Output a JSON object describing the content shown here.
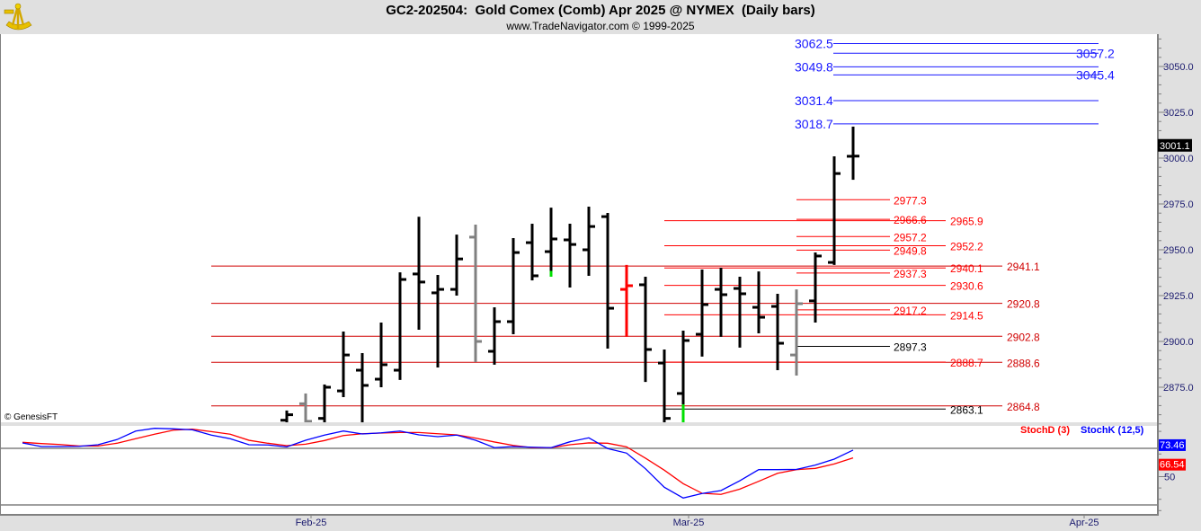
{
  "header": {
    "title": "GC2-202504:  Gold Comex (Comb) Apr 2025 @ NYMEX  (Daily bars)",
    "subtitle": "www.TradeNavigator.com © 1999-2025",
    "logo": "sextant-logo"
  },
  "copyright": "© GenesisFT",
  "colors": {
    "up_bar": "#000000",
    "gray_bar": "#808080",
    "red_bar": "#ff0000",
    "marker": "#00e000",
    "level_red": "#ff0000",
    "level_dark_red": "#d00000",
    "level_blue": "#1a1aff",
    "level_black": "#000000",
    "stoch_k": "#0000ff",
    "stoch_d": "#ff0000"
  },
  "chart_data": [
    {
      "type": "ohlc",
      "title": "GC2-202504:  Gold Comex (Comb) Apr 2025 @ NYMEX  (Daily bars)",
      "ylim": [
        2855,
        3070
      ],
      "y_ticks": [
        "3050.0",
        "3025.0",
        "3000.0",
        "2975.0",
        "2950.0",
        "2925.0",
        "2900.0",
        "2875.0"
      ],
      "x_tick_labels": [
        "Feb-25",
        "Mar-25",
        "Apr-25"
      ],
      "last_price": "3001.1",
      "bars": [
        {
          "o": 2857,
          "h": 2862.3,
          "l": 2850,
          "c": 2860,
          "color": "black"
        },
        {
          "o": 2866,
          "h": 2871.6,
          "l": 2850,
          "c": 2856.4,
          "color": "gray"
        },
        {
          "o": 2858,
          "h": 2876.5,
          "l": 2850,
          "c": 2875,
          "color": "black"
        },
        {
          "o": 2873,
          "h": 2905.4,
          "l": 2869.6,
          "c": 2892.6,
          "color": "black"
        },
        {
          "o": 2884.3,
          "h": 2893.6,
          "l": 2852,
          "c": 2876,
          "color": "black"
        },
        {
          "o": 2879.4,
          "h": 2910.3,
          "l": 2875,
          "c": 2887.3,
          "color": "black"
        },
        {
          "o": 2884.3,
          "h": 2937.7,
          "l": 2879,
          "c": 2933.8,
          "color": "black"
        },
        {
          "o": 2936.8,
          "h": 2968,
          "l": 2906.4,
          "c": 2932.4,
          "color": "black"
        },
        {
          "o": 2926.5,
          "h": 2936.3,
          "l": 2885.8,
          "c": 2928.4,
          "color": "black"
        },
        {
          "o": 2928.4,
          "h": 2958.3,
          "l": 2925,
          "c": 2945,
          "color": "black"
        },
        {
          "o": 2956.9,
          "h": 2963.7,
          "l": 2888.7,
          "c": 2900,
          "color": "gray"
        },
        {
          "o": 2894.6,
          "h": 2918.6,
          "l": 2887.3,
          "c": 2910.8,
          "color": "black"
        },
        {
          "o": 2910.8,
          "h": 2956.4,
          "l": 2903.9,
          "c": 2948.5,
          "color": "black"
        },
        {
          "o": 2953.9,
          "h": 2964.2,
          "l": 2933.3,
          "c": 2935.8,
          "color": "black"
        },
        {
          "o": 2949,
          "h": 2973,
          "l": 2935.3,
          "c": 2955.9,
          "color": "black",
          "green_from": 2938.5
        },
        {
          "o": 2955.4,
          "h": 2964.2,
          "l": 2929.4,
          "c": 2952.9,
          "color": "black"
        },
        {
          "o": 2950,
          "h": 2973.5,
          "l": 2935.8,
          "c": 2962.7,
          "color": "black"
        },
        {
          "o": 2968.1,
          "h": 2970.1,
          "l": 2896.1,
          "c": 2918.1,
          "color": "black"
        },
        {
          "o": 2928.4,
          "h": 2941.7,
          "l": 2902.5,
          "c": 2930.4,
          "color": "red"
        },
        {
          "o": 2930.9,
          "h": 2935.3,
          "l": 2877.9,
          "c": 2895.6,
          "color": "black"
        },
        {
          "o": 2888.2,
          "h": 2895.6,
          "l": 2852,
          "c": 2858,
          "color": "black"
        },
        {
          "o": 2871.6,
          "h": 2905.9,
          "l": 2852,
          "c": 2900.5,
          "color": "black",
          "green_from": 2865.7
        },
        {
          "o": 2903.9,
          "h": 2939.2,
          "l": 2891.7,
          "c": 2920.1,
          "color": "black"
        },
        {
          "o": 2928.4,
          "h": 2940.2,
          "l": 2902.5,
          "c": 2925.5,
          "color": "black"
        },
        {
          "o": 2928.9,
          "h": 2935.3,
          "l": 2896.6,
          "c": 2926,
          "color": "black"
        },
        {
          "o": 2918.6,
          "h": 2938.2,
          "l": 2904.4,
          "c": 2913.2,
          "color": "black"
        },
        {
          "o": 2919.1,
          "h": 2926,
          "l": 2884.3,
          "c": 2899,
          "color": "black"
        },
        {
          "o": 2892.6,
          "h": 2928.4,
          "l": 2881.4,
          "c": 2920.6,
          "color": "gray"
        },
        {
          "o": 2922.1,
          "h": 2948.5,
          "l": 2910.3,
          "c": 2946.6,
          "color": "black"
        },
        {
          "o": 2943.1,
          "h": 3001,
          "l": 2941.7,
          "c": 2991.6,
          "color": "black"
        },
        {
          "o": 3001,
          "h": 3017.2,
          "l": 2988.2,
          "c": 3001.1,
          "color": "black"
        }
      ],
      "levels": [
        {
          "set": "A",
          "value": 2941.1,
          "label": "2941.1",
          "color": "dark_red"
        },
        {
          "set": "A",
          "value": 2920.8,
          "label": "2920.8",
          "color": "dark_red"
        },
        {
          "set": "A",
          "value": 2902.8,
          "label": "2902.8",
          "color": "dark_red"
        },
        {
          "set": "A",
          "value": 2888.6,
          "label": "2888.6",
          "color": "dark_red"
        },
        {
          "set": "A",
          "value": 2864.8,
          "label": "2864.8",
          "color": "dark_red"
        },
        {
          "set": "B",
          "value": 2965.9,
          "label": "2965.9",
          "color": "red"
        },
        {
          "set": "B",
          "value": 2952.2,
          "label": "2952.2",
          "color": "red"
        },
        {
          "set": "B",
          "value": 2940.1,
          "label": "2940.1",
          "color": "red"
        },
        {
          "set": "B",
          "value": 2930.6,
          "label": "2930.6",
          "color": "red"
        },
        {
          "set": "B",
          "value": 2914.5,
          "label": "2914.5",
          "color": "red"
        },
        {
          "set": "B",
          "value": 2888.7,
          "label": "2888.7",
          "color": "red"
        },
        {
          "set": "B",
          "value": 2863.1,
          "label": "2863.1",
          "color": "black"
        },
        {
          "set": "C",
          "value": 2977.3,
          "label": "2977.3",
          "color": "red"
        },
        {
          "set": "C",
          "value": 2966.6,
          "label": "2966.6",
          "color": "red"
        },
        {
          "set": "C",
          "value": 2957.2,
          "label": "2957.2",
          "color": "red"
        },
        {
          "set": "C",
          "value": 2949.8,
          "label": "2949.8",
          "color": "red"
        },
        {
          "set": "C",
          "value": 2937.3,
          "label": "2937.3",
          "color": "red"
        },
        {
          "set": "C",
          "value": 2917.2,
          "label": "2917.2",
          "color": "red"
        },
        {
          "set": "C",
          "value": 2897.3,
          "label": "2897.3",
          "color": "black"
        },
        {
          "set": "D",
          "value": 3062.5,
          "label": "3062.5",
          "color": "blue"
        },
        {
          "set": "D",
          "value": 3049.8,
          "label": "3049.8",
          "color": "blue"
        },
        {
          "set": "D",
          "value": 3031.4,
          "label": "3031.4",
          "color": "blue"
        },
        {
          "set": "D",
          "value": 3018.7,
          "label": "3018.7",
          "color": "blue"
        },
        {
          "set": "E",
          "value": 3057.2,
          "label": "3057.2",
          "color": "blue"
        },
        {
          "set": "E",
          "value": 3045.4,
          "label": "3045.4",
          "color": "blue"
        }
      ]
    },
    {
      "type": "line",
      "ylim": [
        10,
        95
      ],
      "y_ticks": [
        "50"
      ],
      "reference_lines": [
        75,
        25
      ],
      "series": [
        {
          "name": "StochD (3)",
          "color": "#ff0000",
          "last": "66.54",
          "values": [
            80.3,
            79.2,
            78.4,
            77.1,
            77.1,
            79.5,
            83.5,
            87.5,
            91.1,
            91.9,
            89.8,
            87.5,
            82.1,
            79.5,
            77.4,
            78.7,
            81.9,
            86.3,
            87.9,
            88.5,
            89.0,
            89.0,
            87.9,
            86.9,
            84.0,
            80.6,
            77.6,
            75.6,
            75.6,
            78.2,
            79.8,
            79.5,
            76.3,
            66.3,
            55.7,
            43.8,
            35.3,
            34.3,
            39.0,
            45.9,
            53.0,
            56.2,
            57.3,
            61.2,
            66.54
          ]
        },
        {
          "name": "StochK (12,5)",
          "color": "#0000ff",
          "last": "73.46",
          "values": [
            79.8,
            76.6,
            76.6,
            76.8,
            78.2,
            82.7,
            90.3,
            92.7,
            92.2,
            91.4,
            86.7,
            83.5,
            78.2,
            78.0,
            76.3,
            82.1,
            86.7,
            90.3,
            87.7,
            88.7,
            90.3,
            86.9,
            85.3,
            86.7,
            82.1,
            75.6,
            76.6,
            76.0,
            75.6,
            80.8,
            84.3,
            74.8,
            70.8,
            57.0,
            40.6,
            31.1,
            35.1,
            37.7,
            46.4,
            56.2,
            56.2,
            56.4,
            60.2,
            65.5,
            73.46
          ]
        }
      ]
    }
  ]
}
